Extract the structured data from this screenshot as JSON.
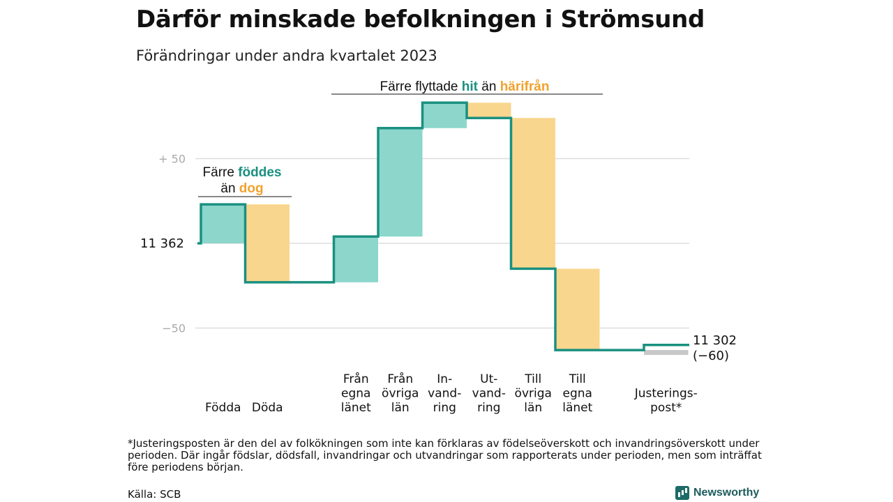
{
  "header": {
    "title": "Därför minskade befolkningen i Strömsund",
    "subtitle": "Förändringar under andra kvartalet 2023"
  },
  "chart_data": {
    "type": "waterfall",
    "start": {
      "label": "11  362",
      "value": 11362
    },
    "end": {
      "label": "11 302",
      "change_label": "(−60)",
      "value": 11302,
      "change": -60
    },
    "ylim": [
      -62,
      85
    ],
    "yticks": [
      {
        "value": 50,
        "label": "+  50"
      },
      {
        "value": 0,
        "label": ""
      },
      {
        "value": -50,
        "label": "−50"
      }
    ],
    "steps": [
      {
        "lines": [
          "Födda"
        ],
        "value": 23,
        "kind": "plus"
      },
      {
        "lines": [
          "Döda"
        ],
        "value": -46,
        "kind": "minus"
      },
      {
        "lines": [],
        "value": 0,
        "kind": "gap"
      },
      {
        "lines": [
          "Från",
          "egna",
          "länet"
        ],
        "value": 27,
        "kind": "plus"
      },
      {
        "lines": [
          "Från",
          "övriga",
          "län"
        ],
        "value": 64,
        "kind": "plus"
      },
      {
        "lines": [
          "In-",
          "vand-",
          "ring"
        ],
        "value": 15,
        "kind": "plus"
      },
      {
        "lines": [
          "Ut-",
          "vand-",
          "ring"
        ],
        "value": -9,
        "kind": "minus"
      },
      {
        "lines": [
          "Till",
          "övriga",
          "län"
        ],
        "value": -89,
        "kind": "minus"
      },
      {
        "lines": [
          "Till",
          "egna",
          "länet"
        ],
        "value": -48,
        "kind": "minus"
      },
      {
        "lines": [],
        "value": 0,
        "kind": "gap"
      },
      {
        "lines": [
          "Justerings-",
          "post*"
        ],
        "value": 3,
        "kind": "adjust"
      }
    ],
    "annotations": [
      {
        "parts": [
          {
            "text": "Färre ",
            "style": "plain"
          },
          {
            "text": "föddes",
            "style": "teal"
          }
        ],
        "parts2": [
          {
            "text": "än ",
            "style": "plain"
          },
          {
            "text": "dog",
            "style": "orange"
          }
        ]
      },
      {
        "parts": [
          {
            "text": "Färre flyttade ",
            "style": "plain"
          },
          {
            "text": "hit",
            "style": "teal"
          },
          {
            "text": " än ",
            "style": "plain"
          },
          {
            "text": "härifrån",
            "style": "orange"
          }
        ]
      }
    ],
    "colors": {
      "plus_fill": "#8cd6cc",
      "minus_fill": "#f9d68e",
      "adjust_fill": "#c8c8c8",
      "line": "#1a9080",
      "teal_text": "#1a9080",
      "orange_text": "#f0a22e",
      "grid": "#dddddd"
    }
  },
  "footer": {
    "note": "*Justeringsposten är den del av folkökningen som inte kan förklaras av födelseöverskott och invandringsöverskott under perioden. Där ingår födslar, dödsfall, invandringar och utvandringar som rapporterats under perioden, men som inträffat före periodens början.",
    "source": "Källa: SCB",
    "brand": "Newsworthy",
    "brand_icon": "bar-chart-icon"
  }
}
